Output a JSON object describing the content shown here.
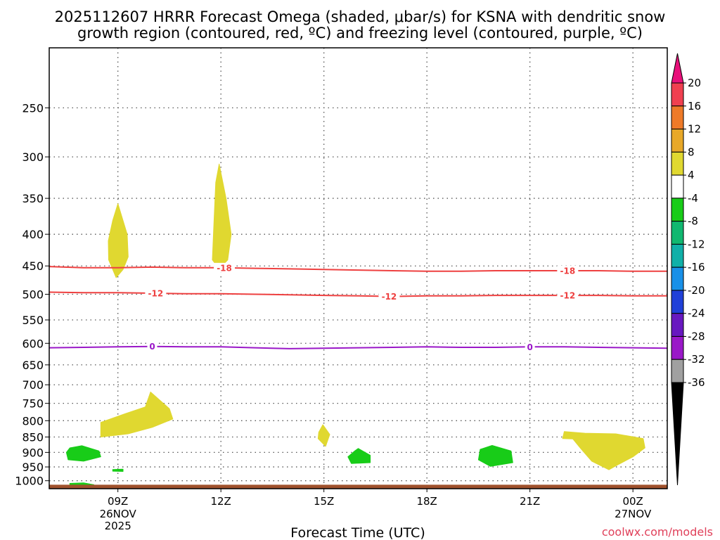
{
  "chart_data": {
    "type": "heatmap",
    "title_line1": "2025112607 HRRR Forecast Omega (shaded, μbar/s) for KSNA with dendritic snow",
    "title_line2": "growth region (contoured, red, ºC) and freezing level (contoured, purple, ºC)",
    "xlabel": "Forecast Time (UTC)",
    "credit": "coolwx.com/models",
    "x_range_hours": [
      7,
      25
    ],
    "y_scale": "log-pressure",
    "y_range_hpa": [
      1030,
      200
    ],
    "y_ticks": [
      "250",
      "300",
      "350",
      "400",
      "450",
      "500",
      "550",
      "600",
      "650",
      "700",
      "750",
      "800",
      "850",
      "900",
      "950",
      "1000"
    ],
    "x_ticks": [
      {
        "hour": 9,
        "label": "09Z",
        "sub": [
          "26NOV",
          "2025"
        ]
      },
      {
        "hour": 12,
        "label": "12Z",
        "sub": []
      },
      {
        "hour": 15,
        "label": "15Z",
        "sub": []
      },
      {
        "hour": 18,
        "label": "18Z",
        "sub": []
      },
      {
        "hour": 21,
        "label": "21Z",
        "sub": []
      },
      {
        "hour": 24,
        "label": "00Z",
        "sub": [
          "27NOV"
        ]
      }
    ],
    "omega_regions": [
      {
        "category": "4 to 8",
        "color": "#e0d830",
        "center_hour": 9.0,
        "center_hpa": 405,
        "note": "rising cell 360-470 hPa"
      },
      {
        "category": "4 to 8",
        "color": "#e0d830",
        "center_hour": 12.0,
        "center_hpa": 390,
        "note": "rising cell 310-455 hPa"
      },
      {
        "category": "4 to 8",
        "color": "#e0d830",
        "center_hour": 9.8,
        "center_hpa": 790,
        "note": "719-850 hPa"
      },
      {
        "category": "4 to 8",
        "color": "#e0d830",
        "center_hour": 15.0,
        "center_hpa": 840,
        "note": "small cell"
      },
      {
        "category": "4 to 8",
        "color": "#e0d830",
        "center_hour": 23.4,
        "center_hpa": 880,
        "note": "835-960 hPa"
      },
      {
        "category": "-8 to -4",
        "color": "#18cc18",
        "center_hour": 7.9,
        "center_hpa": 900,
        "note": "sinking"
      },
      {
        "category": "-8 to -4",
        "color": "#18cc18",
        "center_hour": 7.9,
        "center_hpa": 1015,
        "note": "sinking"
      },
      {
        "category": "-8 to -4",
        "color": "#18cc18",
        "center_hour": 9.0,
        "center_hpa": 962,
        "note": "sinking"
      },
      {
        "category": "-8 to -4",
        "color": "#18cc18",
        "center_hour": 16.0,
        "center_hpa": 915,
        "note": "sinking"
      },
      {
        "category": "-8 to -4",
        "color": "#18cc18",
        "center_hour": 19.9,
        "center_hpa": 905,
        "note": "sinking"
      }
    ],
    "contours": [
      {
        "name": "dgz -18 C",
        "color": "#ee4040",
        "hours": [
          7,
          8,
          9,
          10,
          11,
          12,
          13,
          14,
          15,
          16,
          17,
          18,
          19,
          20,
          21,
          22,
          23,
          24,
          25
        ],
        "hpa": [
          451,
          453,
          453,
          452,
          453,
          453,
          454,
          455,
          456,
          457,
          458,
          459,
          459,
          458,
          458,
          458,
          458,
          459,
          459
        ],
        "labels": [
          {
            "text": "-18",
            "hour": 12.1
          },
          {
            "text": "-18",
            "hour": 22.1
          }
        ]
      },
      {
        "name": "dgz -12 C",
        "color": "#ee4040",
        "hours": [
          7,
          8,
          9,
          10,
          11,
          12,
          13,
          14,
          15,
          16,
          17,
          18,
          19,
          20,
          21,
          22,
          23,
          24,
          25
        ],
        "hpa": [
          496,
          497,
          497,
          498,
          499,
          499,
          500,
          501,
          502,
          503,
          504,
          503,
          503,
          502,
          502,
          502,
          502,
          503,
          503
        ],
        "labels": [
          {
            "text": "-12",
            "hour": 10.1
          },
          {
            "text": "-12",
            "hour": 16.9
          },
          {
            "text": "-12",
            "hour": 22.1
          }
        ]
      },
      {
        "name": "freezing level 0 C",
        "color": "#9a18c8",
        "hours": [
          7,
          8,
          9,
          10,
          11,
          12,
          13,
          14,
          15,
          16,
          17,
          18,
          19,
          20,
          21,
          22,
          23,
          24,
          25
        ],
        "hpa": [
          610,
          609,
          608,
          607,
          608,
          608,
          610,
          612,
          611,
          610,
          609,
          608,
          609,
          609,
          608,
          608,
          609,
          610,
          611
        ],
        "labels": [
          {
            "text": "0",
            "hour": 10.0
          },
          {
            "text": "0",
            "hour": 21.0
          }
        ]
      }
    ],
    "ground": {
      "color": "#a0522d",
      "top_hpa": 1015
    },
    "colorbar": {
      "unit": "μbar/s",
      "labels": [
        "20",
        "16",
        "12",
        "8",
        "4",
        "-4",
        "-8",
        "-12",
        "-16",
        "-20",
        "-24",
        "-28",
        "-32",
        "-36"
      ],
      "colors": [
        "#f04050",
        "#ee7a28",
        "#e8a828",
        "#e0d830",
        "#ffffff",
        "#18cc18",
        "#10b870",
        "#10b0a8",
        "#1890e8",
        "#2040d8",
        "#6818c0",
        "#9a18c8",
        "#a0a0a0"
      ],
      "top_arrow_color": "#e8107a",
      "bottom_arrow_color": "#000000"
    }
  }
}
